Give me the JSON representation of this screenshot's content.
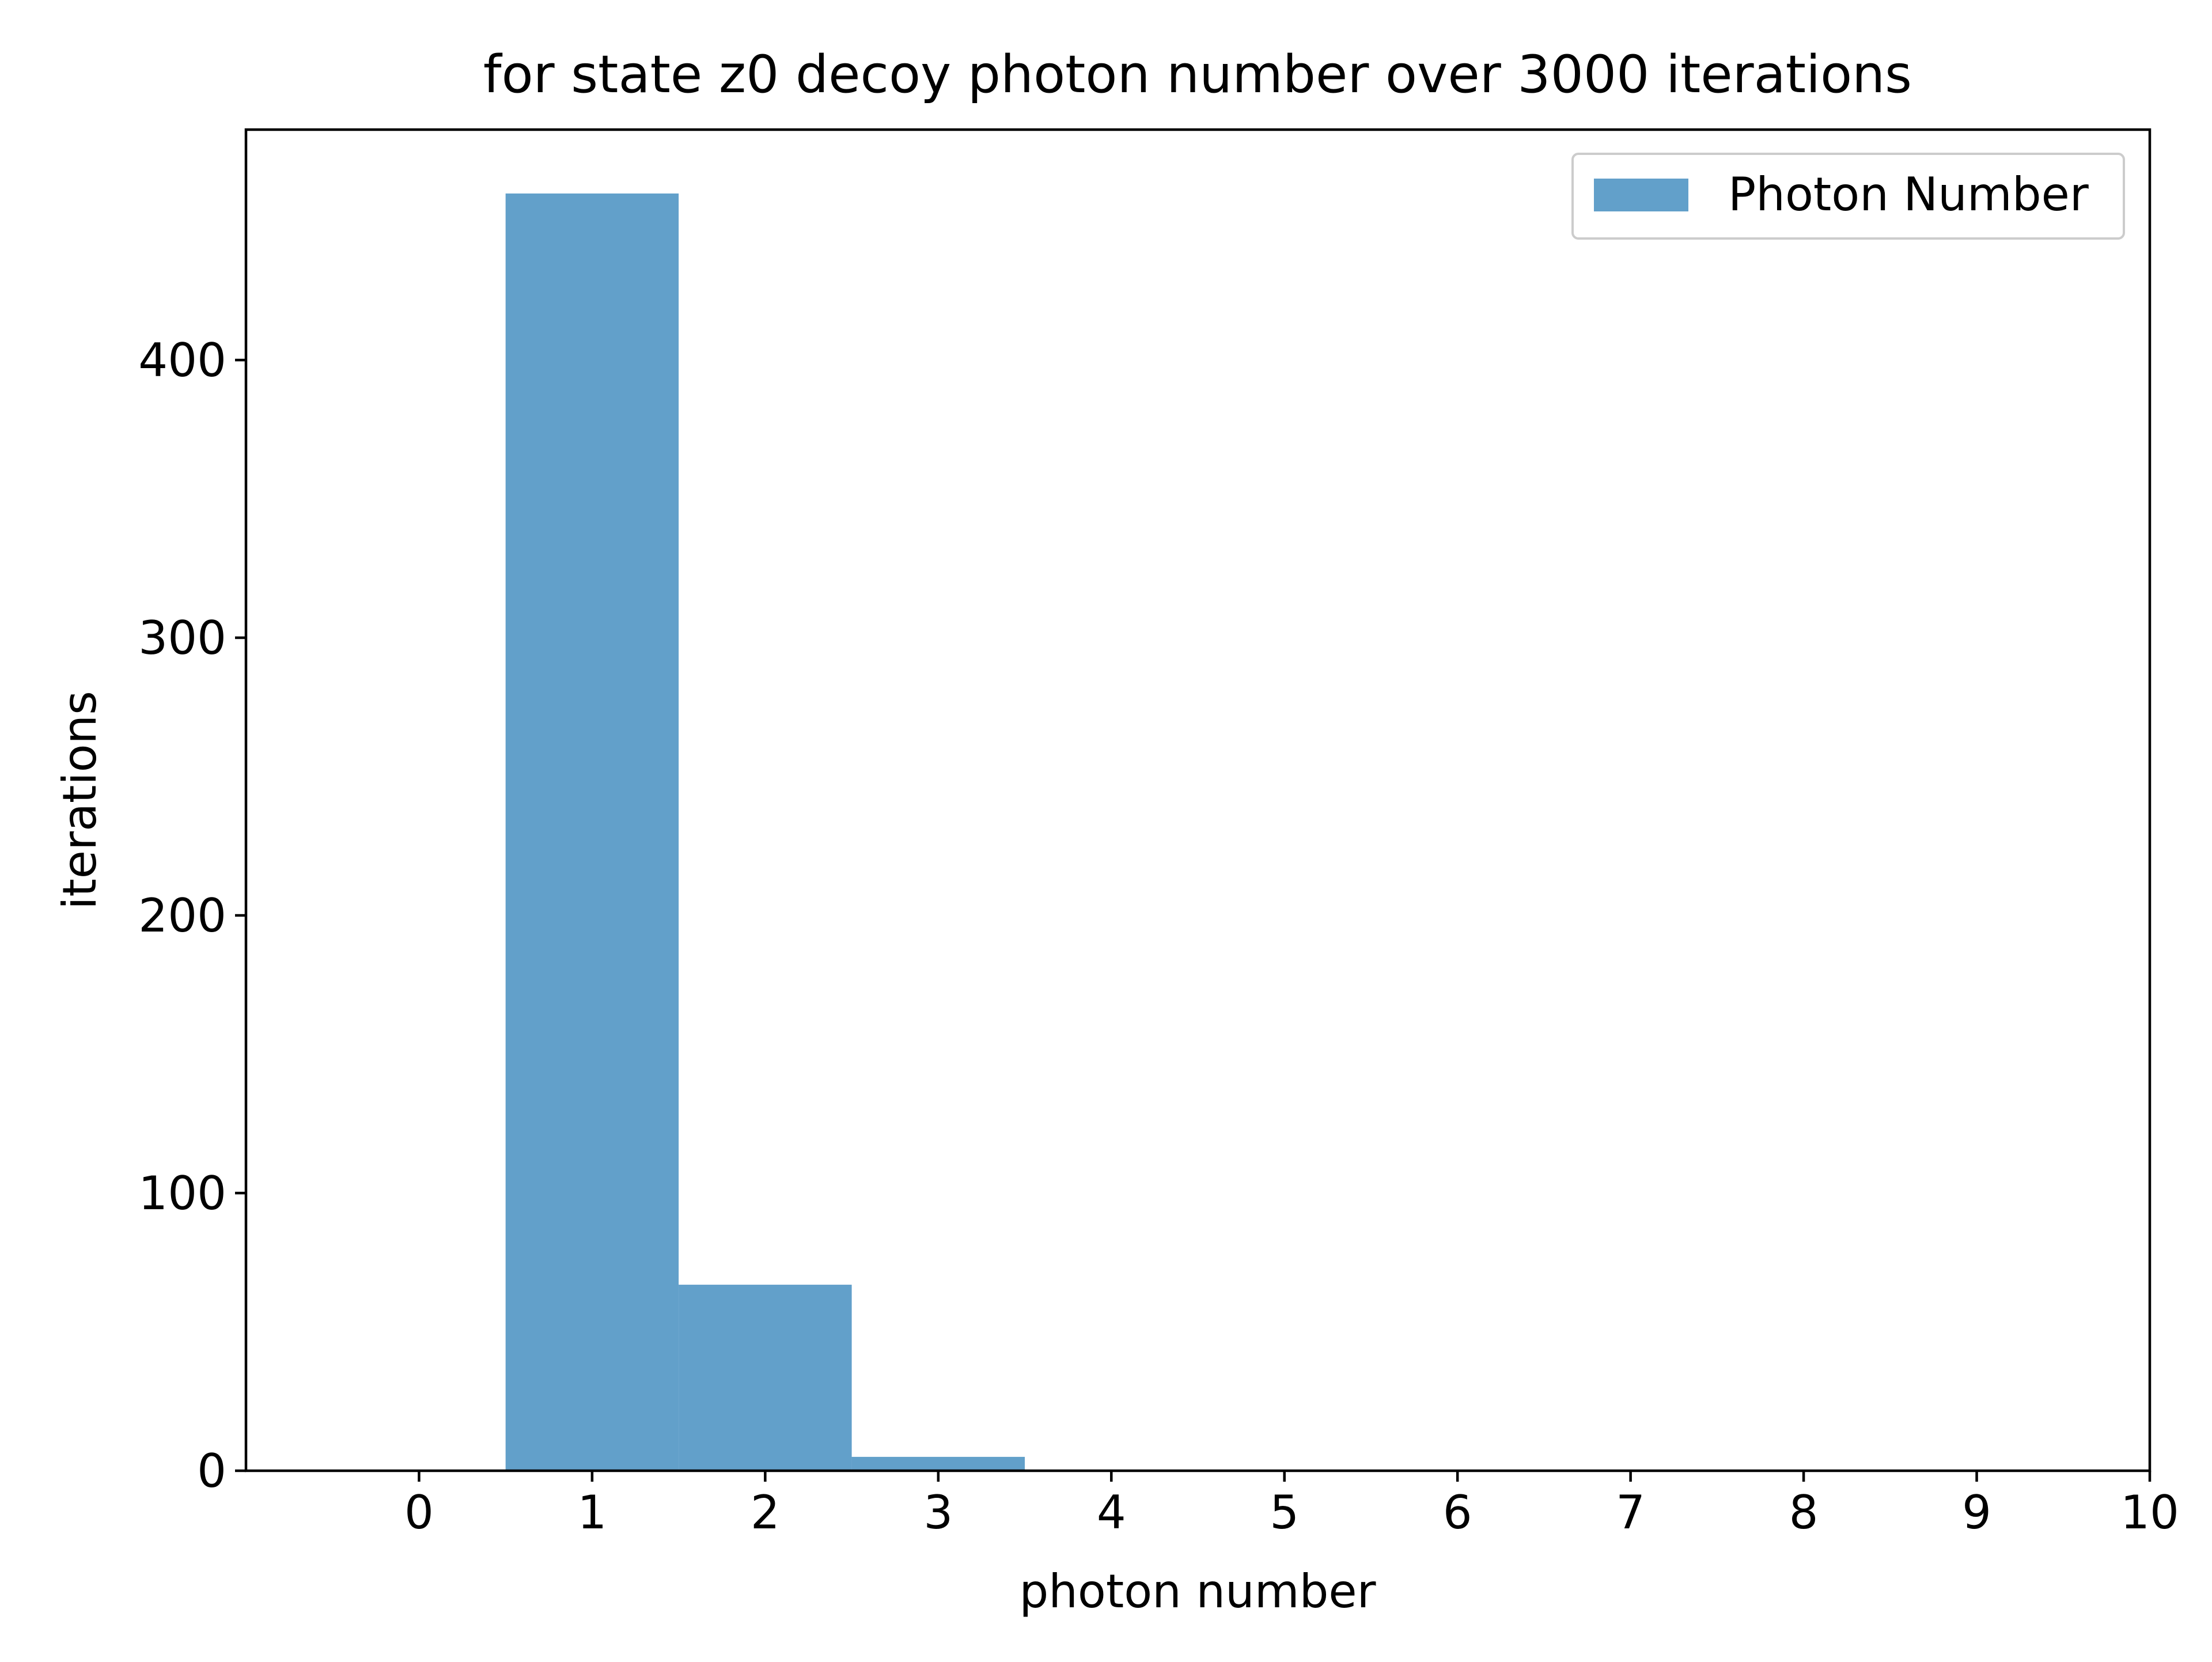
{
  "chart_data": {
    "type": "bar",
    "title": "for state z0 decoy photon number over 3000 iterations",
    "xlabel": "photon number",
    "ylabel": "iterations",
    "xlim": [
      -1,
      10
    ],
    "ylim": [
      0,
      483
    ],
    "x_ticks": [
      0,
      1,
      2,
      3,
      4,
      5,
      6,
      7,
      8,
      9,
      10
    ],
    "y_ticks": [
      0,
      100,
      200,
      300,
      400
    ],
    "grid": false,
    "legend": {
      "placement": "top-right"
    },
    "series": [
      {
        "name": "Photon Number",
        "color": "#1f77b4",
        "alpha": 0.7,
        "bin_width": 1,
        "x": [
          1,
          2,
          3
        ],
        "values": [
          460,
          67,
          5
        ]
      }
    ]
  }
}
